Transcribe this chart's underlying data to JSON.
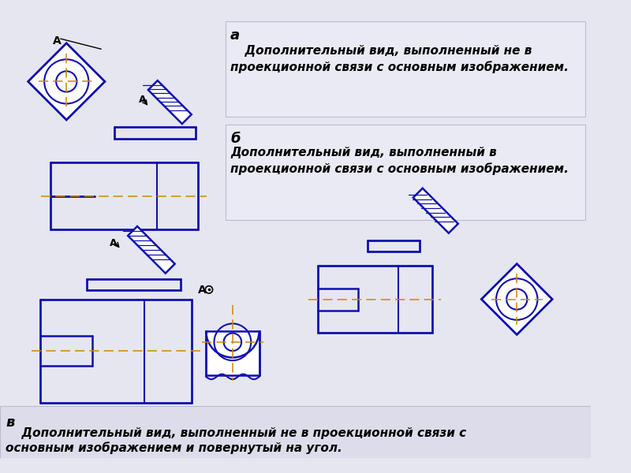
{
  "bg_color": "#e6e6f0",
  "panel_color": "#eaeaf5",
  "bottom_panel_color": "#dcdcea",
  "blue": "#1010b0",
  "orange": "#cc8800",
  "label_a": "а",
  "label_b": "б",
  "label_v": "в",
  "text_a1": "  Дополнительный вид, выполненный не в",
  "text_a2": "проекционной связи с основным изображением.",
  "text_b1": "Дополнительный вид, выполненный в",
  "text_b2": "проекционной связи с основным изображением.",
  "text_v1": "  Дополнительный вид, выполненный не в проекционной связи с",
  "text_v2": "основным изображением и повернутый на угол.",
  "fig_width": 8.0,
  "fig_height": 6.0,
  "dpi": 100
}
